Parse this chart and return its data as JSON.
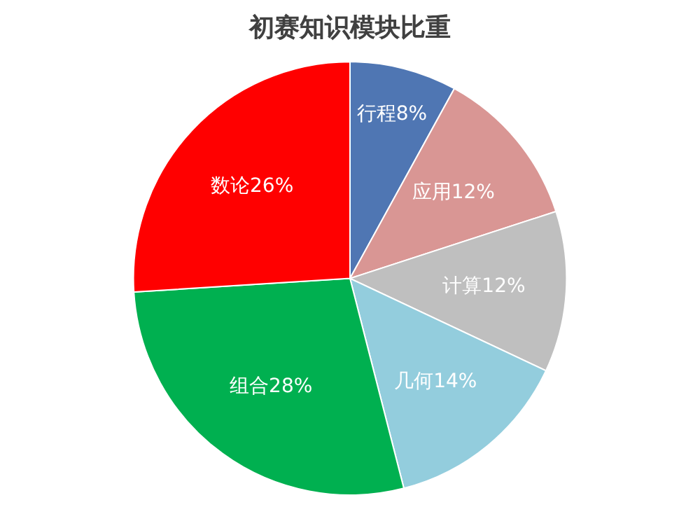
{
  "chart_data": {
    "type": "pie",
    "title": "初赛知识模块比重",
    "categories": [
      "行程",
      "应用",
      "计算",
      "几何",
      "组合",
      "数论"
    ],
    "values": [
      8,
      12,
      12,
      14,
      28,
      26
    ],
    "value_labels": [
      "8%",
      "12%",
      "12%",
      "14%",
      "28%",
      "26%"
    ],
    "colors": [
      "#4f76b3",
      "#d99694",
      "#bfbfbf",
      "#93cddd",
      "#00b050",
      "#ff0000"
    ],
    "legend": false
  }
}
